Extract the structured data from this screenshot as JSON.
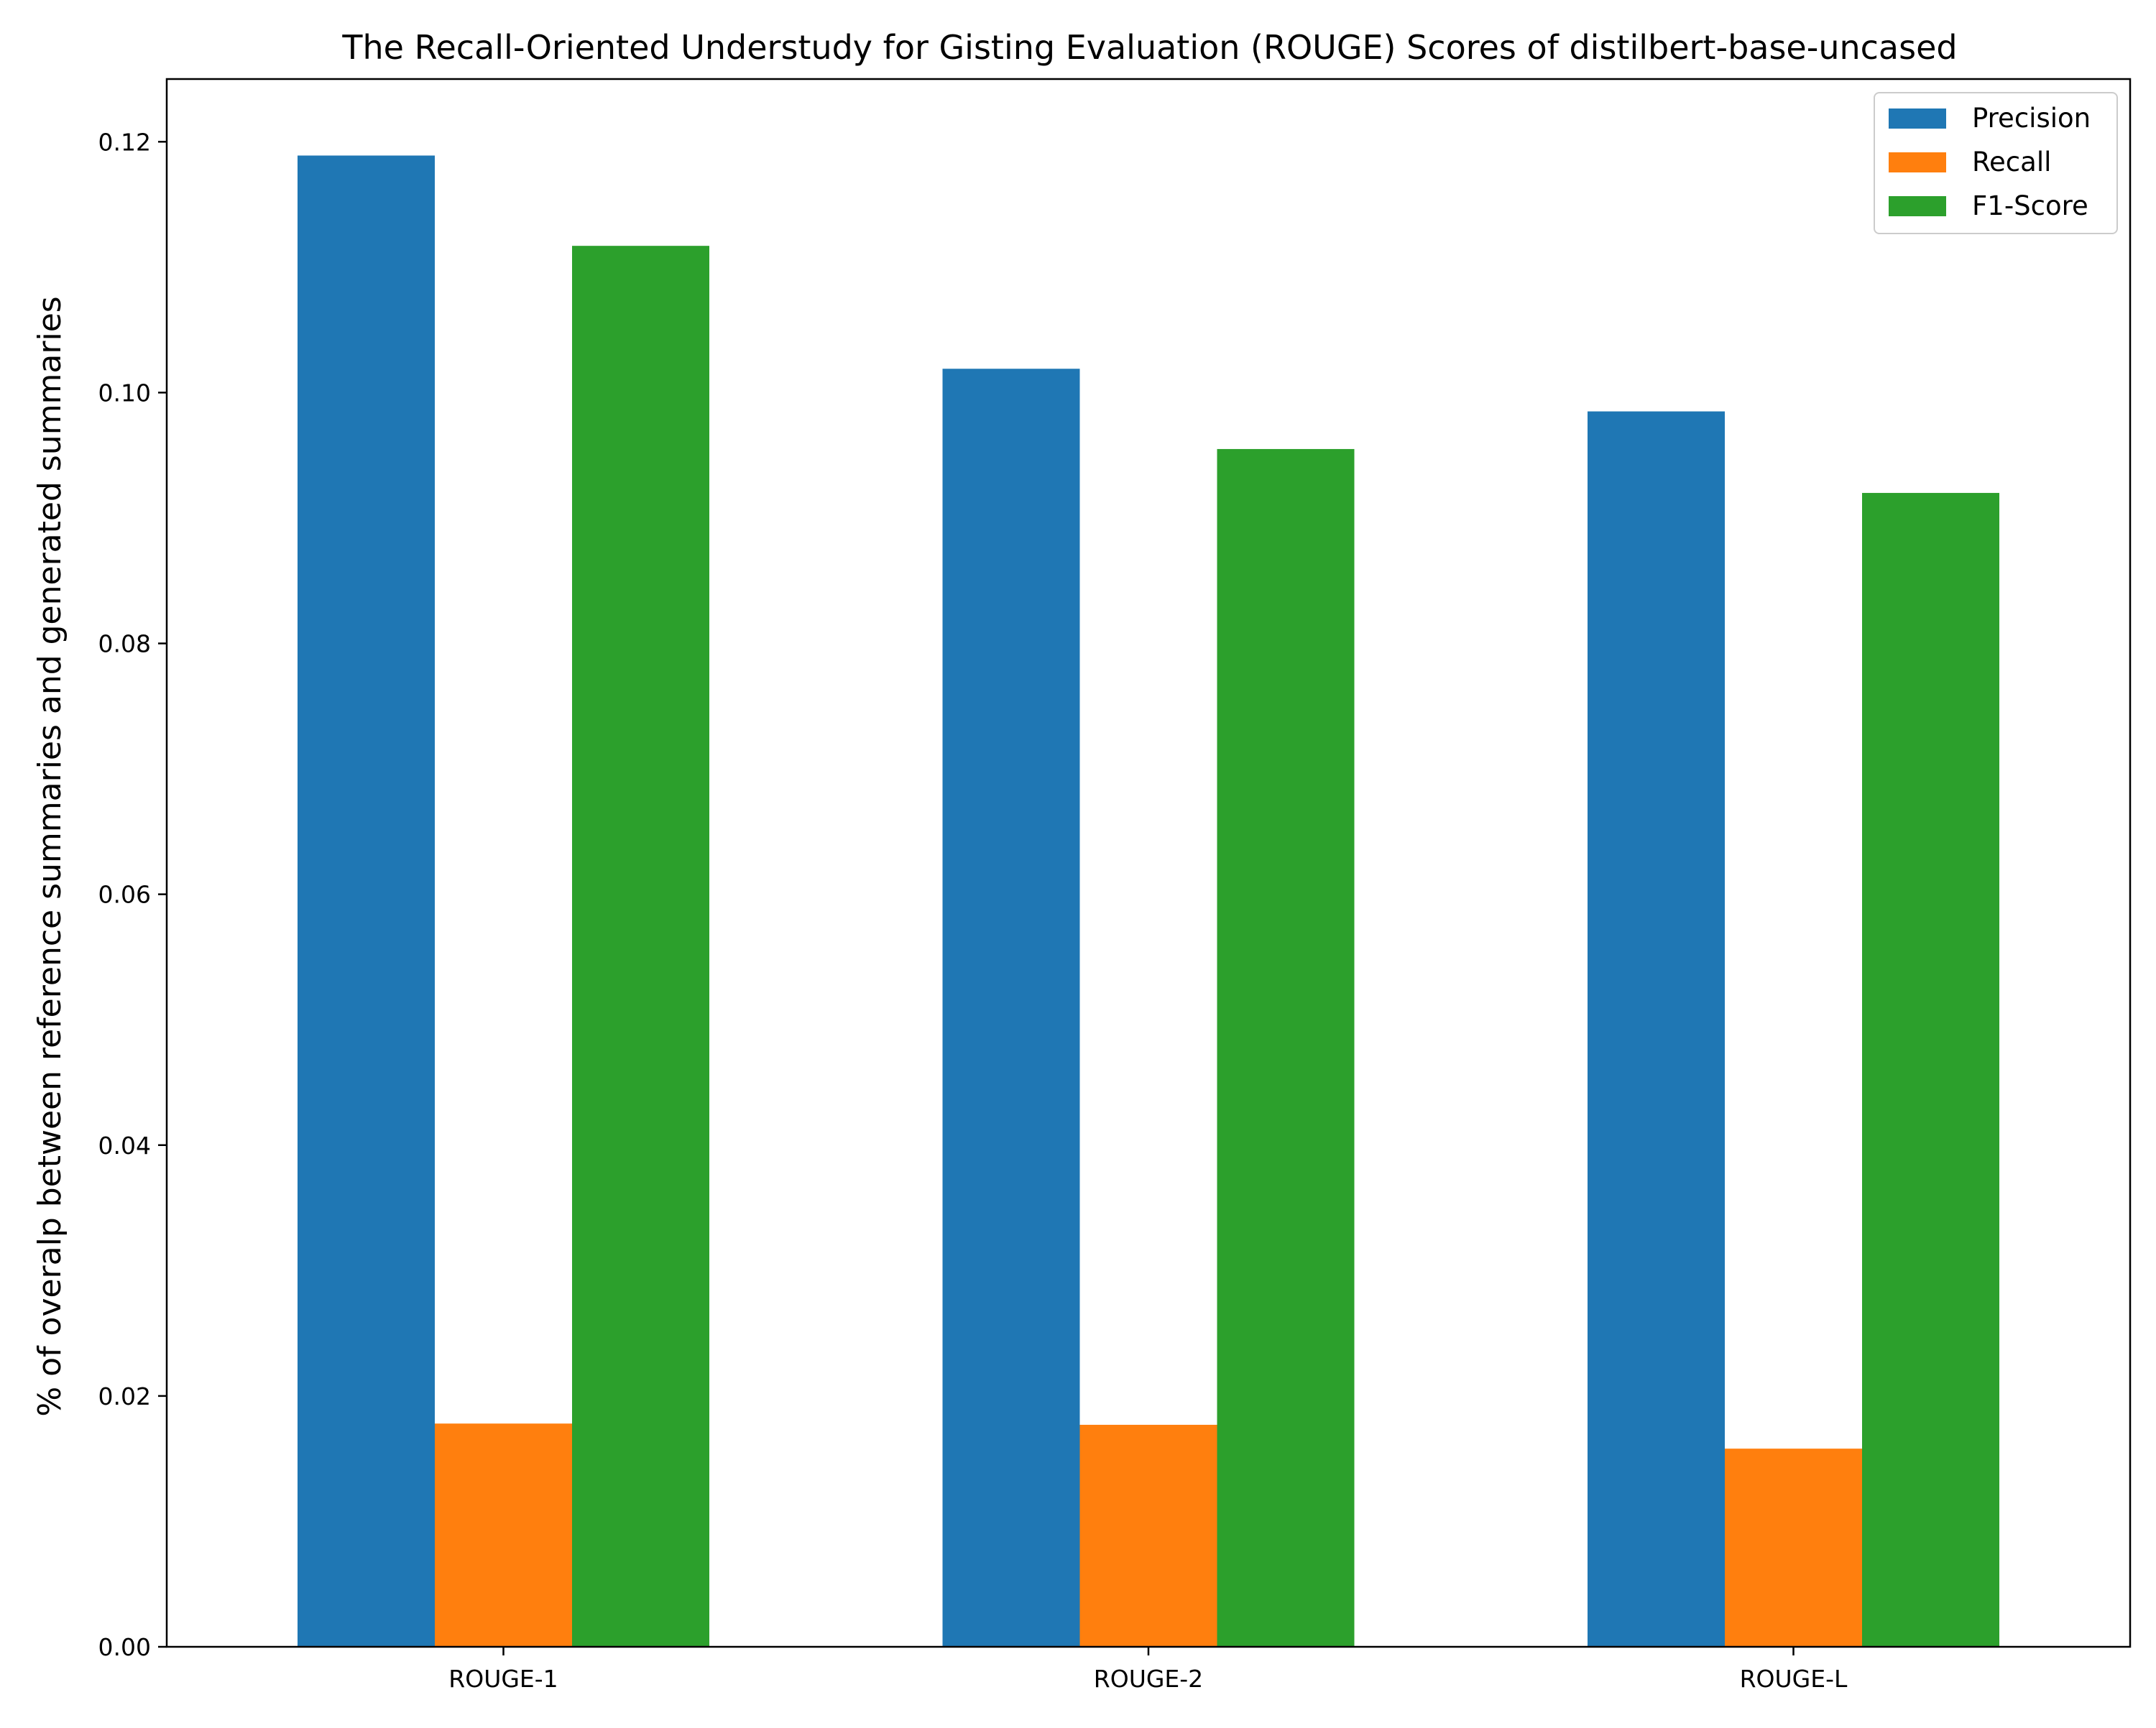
{
  "chart_data": {
    "type": "bar",
    "title": "The Recall-Oriented Understudy for Gisting Evaluation (ROUGE) Scores of distilbert-base-uncased",
    "xlabel": "",
    "ylabel": "% of overalp between reference summaries and generated summaries",
    "categories": [
      "ROUGE-1",
      "ROUGE-2",
      "ROUGE-L"
    ],
    "series": [
      {
        "name": "Precision",
        "color": "#1f77b4",
        "values": [
          0.1189,
          0.1019,
          0.0985
        ]
      },
      {
        "name": "Recall",
        "color": "#ff7f0e",
        "values": [
          0.0178,
          0.0177,
          0.0158
        ]
      },
      {
        "name": "F1-Score",
        "color": "#2ca02c",
        "values": [
          0.1117,
          0.0955,
          0.092
        ]
      }
    ],
    "ylim": [
      0,
      0.125
    ],
    "yticks": [
      0.0,
      0.02,
      0.04,
      0.06,
      0.08,
      0.1,
      0.12
    ],
    "ytick_labels": [
      "0.00",
      "0.02",
      "0.04",
      "0.06",
      "0.08",
      "0.10",
      "0.12"
    ],
    "grid": false,
    "legend_position": "top-right"
  }
}
